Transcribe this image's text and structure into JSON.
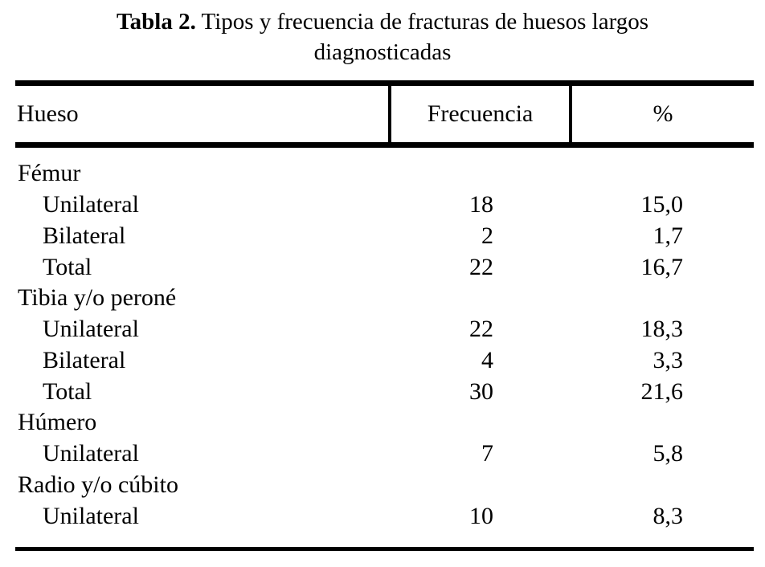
{
  "title": {
    "label": "Tabla 2.",
    "rest": " Tipos y frecuencia de fracturas de huesos largos",
    "line2": "diagnosticadas"
  },
  "table": {
    "headers": {
      "hueso": "Hueso",
      "frecuencia": "Frecuencia",
      "pct": "%"
    },
    "rows": [
      {
        "label": "Fémur",
        "frec": "",
        "pct": "",
        "indent": false
      },
      {
        "label": "Unilateral",
        "frec": "18",
        "pct": "15,0",
        "indent": true
      },
      {
        "label": "Bilateral",
        "frec": "2",
        "pct": "1,7",
        "indent": true
      },
      {
        "label": "Total",
        "frec": "22",
        "pct": "16,7",
        "indent": true
      },
      {
        "label": "Tibia y/o peroné",
        "frec": "",
        "pct": "",
        "indent": false
      },
      {
        "label": "Unilateral",
        "frec": "22",
        "pct": "18,3",
        "indent": true
      },
      {
        "label": "Bilateral",
        "frec": "4",
        "pct": "3,3",
        "indent": true
      },
      {
        "label": "Total",
        "frec": "30",
        "pct": "21,6",
        "indent": true
      },
      {
        "label": "Húmero",
        "frec": "",
        "pct": "",
        "indent": false
      },
      {
        "label": "Unilateral",
        "frec": "7",
        "pct": "5,8",
        "indent": true
      },
      {
        "label": "Radio y/o cúbito",
        "frec": "",
        "pct": "",
        "indent": false
      },
      {
        "label": "Unilateral",
        "frec": "10",
        "pct": "8,3",
        "indent": true
      }
    ],
    "text_color": "#000000",
    "background_color": "#ffffff"
  }
}
